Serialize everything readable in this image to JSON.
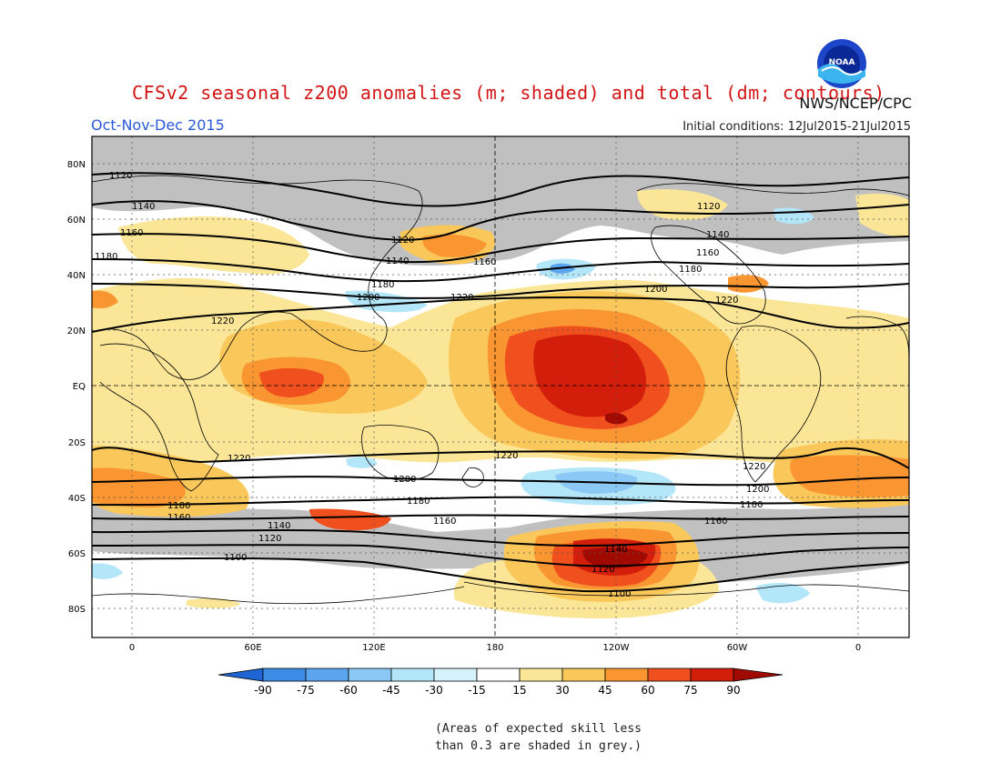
{
  "header": {
    "title": "CFSv2 seasonal z200 anomalies (m; shaded) and total (dm; contours)",
    "agency": "NWS/NCEP/CPC",
    "period": "Oct-Nov-Dec 2015",
    "initial_conditions": "Initial conditions: 12Jul2015-21Jul2015"
  },
  "logo": {
    "icon": "noaa-logo-icon",
    "text": "NOAA"
  },
  "map": {
    "lat_labels": [
      "80N",
      "60N",
      "40N",
      "20N",
      "EQ",
      "20S",
      "40S",
      "60S",
      "80S"
    ],
    "lon_labels": [
      "0",
      "60E",
      "120E",
      "180",
      "120W",
      "60W",
      "0"
    ],
    "contour_labels": {
      "c1100": "1100",
      "c1120": "1120",
      "c1140": "1140",
      "c1160": "1160",
      "c1180": "1180",
      "c1200": "1200",
      "c1220": "1220"
    },
    "colors": {
      "grey_mask": "#c0c0c0",
      "land_outline": "#000000",
      "contour": "#000000"
    }
  },
  "colorbar": {
    "labels": [
      "-90",
      "-75",
      "-60",
      "-45",
      "-30",
      "-15",
      "15",
      "30",
      "45",
      "60",
      "75",
      "90"
    ],
    "colors": [
      "#1e64d2",
      "#3c8ce6",
      "#5aa5ee",
      "#8cc8f5",
      "#b4e6fa",
      "#ffffff",
      "#fae696",
      "#fac85a",
      "#fa9632",
      "#f0501e",
      "#d21e0a",
      "#a00a00"
    ]
  },
  "note": {
    "line1": "(Areas of expected skill less",
    "line2": "than 0.3 are shaded in grey.)"
  }
}
